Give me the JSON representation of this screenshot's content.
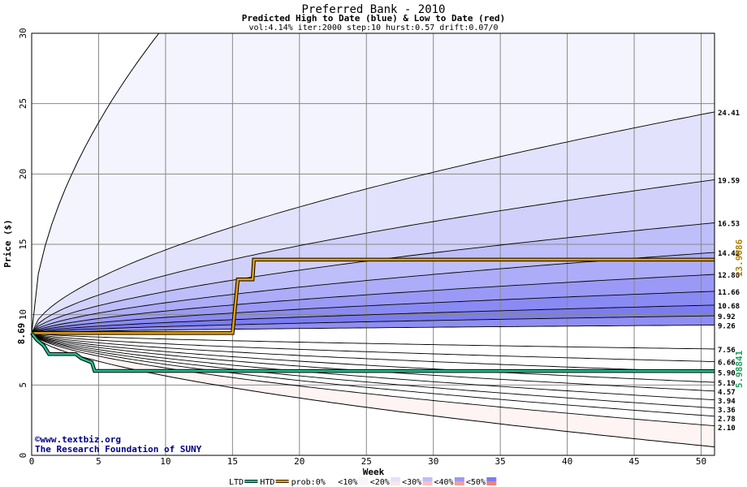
{
  "chart_data": {
    "type": "area",
    "title": "Preferred Bank - 2010",
    "subtitle": "Predicted High to Date (blue) &  Low to Date (red)",
    "params": "vol:4.14% iter:2000 step:10 hurst:0.57 drift:0.07/0",
    "xlabel": "Week",
    "ylabel": "Price ($)",
    "xlim": [
      0,
      51
    ],
    "ylim": [
      0,
      30
    ],
    "xticks": [
      "0",
      "5",
      "10",
      "15",
      "20",
      "25",
      "30",
      "35",
      "40",
      "45",
      "50"
    ],
    "yticks": [
      "0",
      "5",
      "10",
      "15",
      "20",
      "25",
      "30"
    ],
    "start_price": 8.69,
    "start_label": "8.69",
    "grid": true,
    "upper_envelope_end": 30.0,
    "upper_envelope_x_at_top": 9.5,
    "lower_envelope_end": 0.6,
    "blue_bands_end": [
      24.41,
      19.59,
      16.53,
      14.42,
      12.86,
      11.66,
      10.68,
      9.92,
      9.26
    ],
    "red_bands_end": [
      7.56,
      6.66,
      5.9,
      5.19,
      4.57,
      3.94,
      3.36,
      2.78,
      2.1
    ],
    "end_labels": [
      "24.41",
      "19.59",
      "16.53",
      "14.42",
      "12.86",
      "11.66",
      "10.68",
      "9.92",
      "9.26",
      "7.56",
      "6.66",
      "5.90",
      "5.19",
      "4.57",
      "3.94",
      "3.36",
      "2.78",
      "2.10"
    ],
    "htd": {
      "name": "HTD",
      "color": "#e8a000",
      "label": "13.9086",
      "points": [
        [
          0,
          8.69
        ],
        [
          15,
          8.69
        ],
        [
          15.4,
          12.5
        ],
        [
          16.5,
          12.5
        ],
        [
          16.6,
          13.91
        ],
        [
          51,
          13.91
        ]
      ]
    },
    "ltd": {
      "name": "LTD",
      "color": "#20c090",
      "label": "5.98841",
      "points": [
        [
          0,
          8.69
        ],
        [
          0.4,
          8.2
        ],
        [
          0.9,
          7.8
        ],
        [
          1.3,
          7.2
        ],
        [
          3.3,
          7.2
        ],
        [
          3.7,
          6.9
        ],
        [
          4.5,
          6.6
        ],
        [
          4.7,
          6.0
        ],
        [
          51,
          5.99
        ]
      ]
    },
    "legend": {
      "position": "bottom",
      "items": [
        "LTD",
        "HTD",
        "prob:0%",
        "<10%",
        "<20%",
        "<30%",
        "<40%",
        "<50%"
      ]
    },
    "colors": {
      "blue_bands": [
        "#f4f4fe",
        "#e2e2fc",
        "#d0d0fb",
        "#bebefa",
        "#acacf8",
        "#9a9af6",
        "#8a8af4",
        "#7c7cf2",
        "#8e8ef3"
      ],
      "red_bands": [
        "#fef4f4",
        "#fde4e4",
        "#fcd2d2",
        "#fbc0c0",
        "#f9aeae",
        "#f79c9c",
        "#f58e8e",
        "#f38080",
        "#f49090"
      ],
      "title": "#000000",
      "credit": "#000080",
      "htd_label": "#b08000",
      "ltd_label": "#20a060"
    },
    "credit": [
      "©www.textbiz.org",
      "The Research Foundation of SUNY"
    ]
  }
}
